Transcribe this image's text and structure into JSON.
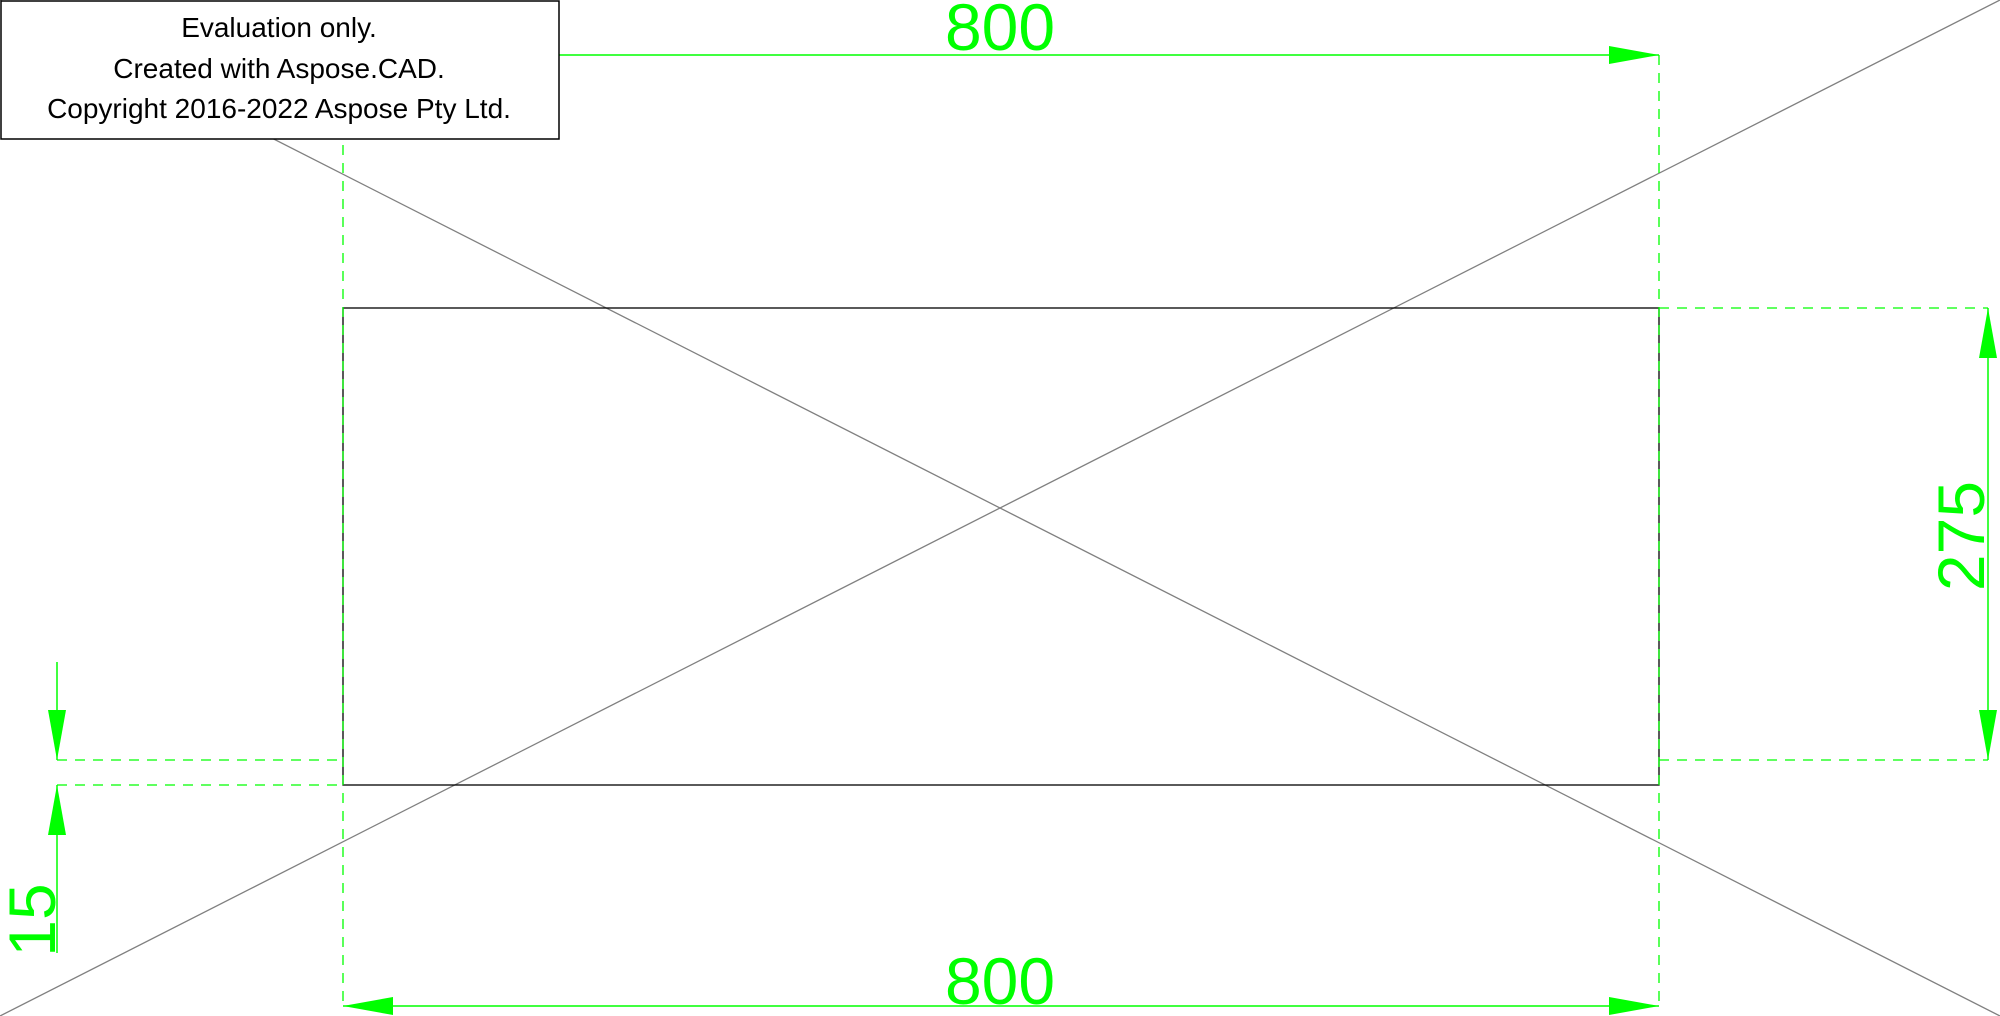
{
  "watermark": {
    "line1": "Evaluation only.",
    "line2": "Created with Aspose.CAD.",
    "line3": "Copyright 2016-2022 Aspose Pty Ltd."
  },
  "dimensions": {
    "top_width": "800",
    "bottom_width": "800",
    "right_height": "275",
    "left_offset": "15"
  },
  "colors": {
    "dimension": "#00ff00",
    "geometry": "#000000",
    "background": "#ffffff"
  }
}
